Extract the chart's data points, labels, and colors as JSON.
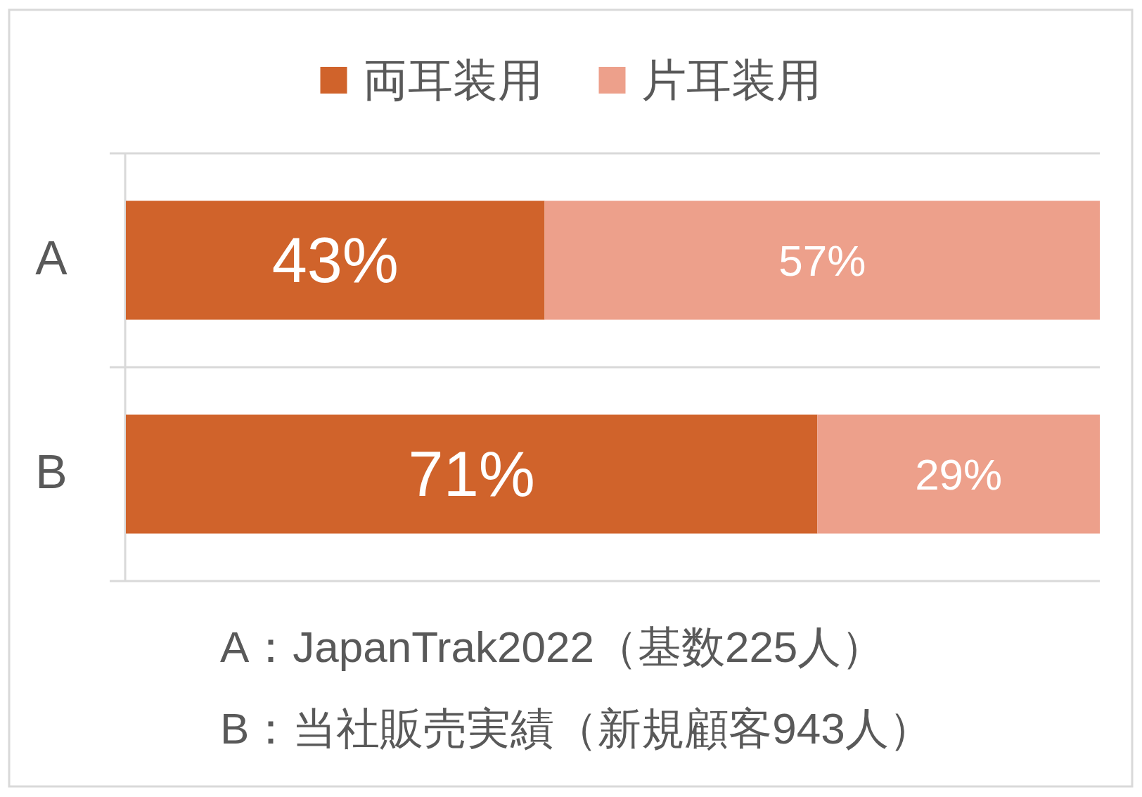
{
  "chart_data": {
    "type": "bar",
    "orientation": "horizontal",
    "stacked": true,
    "categories": [
      "A",
      "B"
    ],
    "series": [
      {
        "name": "両耳装用",
        "color": "#d0632b",
        "values": [
          43,
          71
        ],
        "value_labels": [
          "43%",
          "71%"
        ]
      },
      {
        "name": "片耳装用",
        "color": "#eda08b",
        "values": [
          57,
          29
        ],
        "value_labels": [
          "57%",
          "29%"
        ]
      }
    ],
    "tick_labels": "y",
    "grid": "y",
    "legend": "top",
    "annotations": [
      "A：JapanTrak2022（基数225人）",
      "B：当社販売実績（新規顧客943人）"
    ]
  }
}
